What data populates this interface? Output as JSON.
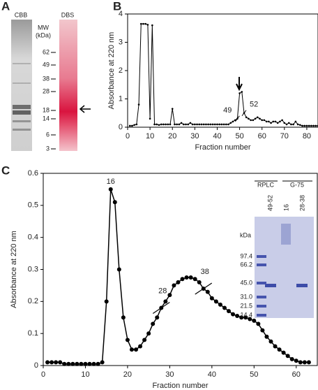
{
  "gels": {
    "panel_label": "A",
    "lanes": [
      "CBB",
      "DBS"
    ],
    "mw_title": "MW",
    "mw_unit": "(kDa)",
    "markers": [
      "62",
      "49",
      "38",
      "28",
      "18",
      "14",
      "6",
      "3"
    ],
    "inset": {
      "groups": [
        "RPLC",
        "G-75"
      ],
      "lanes": [
        "49-52",
        "16",
        "28-38"
      ],
      "unit": "kDa",
      "markers": [
        "97.4",
        "66.2",
        "45.0",
        "31.0",
        "21.5",
        "14.4"
      ]
    }
  },
  "chart_data": [
    {
      "type": "line",
      "panel_label": "B",
      "xlabel": "Fraction number",
      "ylabel": "Absorbance at 220 nm",
      "color": "#000000",
      "x": [
        1,
        2,
        3,
        4,
        5,
        6,
        7,
        8,
        9,
        10,
        11,
        12,
        13,
        14,
        15,
        16,
        17,
        18,
        19,
        20,
        21,
        22,
        23,
        24,
        25,
        26,
        27,
        28,
        29,
        30,
        31,
        32,
        33,
        34,
        35,
        36,
        37,
        38,
        39,
        40,
        41,
        42,
        43,
        44,
        45,
        46,
        47,
        48,
        49,
        50,
        51,
        52,
        53,
        54,
        55,
        56,
        57,
        58,
        59,
        60,
        61,
        62,
        63,
        64,
        65,
        66,
        67,
        68,
        69,
        70,
        71,
        72,
        73,
        74,
        75,
        76,
        77,
        78,
        79,
        80,
        81,
        82,
        83,
        84,
        85
      ],
      "values": [
        0.05,
        0.05,
        0.08,
        0.1,
        0.8,
        3.65,
        3.65,
        3.65,
        3.62,
        0.3,
        3.6,
        0.1,
        0.1,
        0.08,
        0.1,
        0.1,
        0.1,
        0.1,
        0.1,
        0.65,
        0.1,
        0.1,
        0.1,
        0.15,
        0.1,
        0.1,
        0.1,
        0.15,
        0.1,
        0.1,
        0.1,
        0.1,
        0.1,
        0.1,
        0.1,
        0.1,
        0.1,
        0.1,
        0.1,
        0.1,
        0.1,
        0.1,
        0.1,
        0.1,
        0.1,
        0.15,
        0.2,
        0.25,
        0.3,
        1.2,
        1.25,
        0.5,
        0.35,
        0.3,
        0.25,
        0.25,
        0.3,
        0.35,
        0.3,
        0.25,
        0.25,
        0.2,
        0.2,
        0.15,
        0.2,
        0.2,
        0.15,
        0.2,
        0.25,
        0.15,
        0.1,
        0.15,
        0.1,
        0.1,
        0.2,
        0.1,
        0.08,
        0.05,
        0.05,
        0.05,
        0.05,
        0.05,
        0.05,
        0.05,
        0.05
      ],
      "annotations": [
        "49",
        "52"
      ],
      "xlim": [
        0,
        85
      ],
      "xticks": [
        0,
        10,
        20,
        30,
        40,
        50,
        60,
        70,
        80
      ],
      "ylim": [
        0,
        4
      ],
      "yticks": [
        0,
        1,
        2,
        3,
        4
      ]
    },
    {
      "type": "line",
      "panel_label": "C",
      "xlabel": "Fraction number",
      "ylabel": "Absorbance at 220 nm",
      "color": "#000000",
      "x": [
        1,
        2,
        3,
        4,
        5,
        6,
        7,
        8,
        9,
        10,
        11,
        12,
        13,
        14,
        15,
        16,
        17,
        18,
        19,
        20,
        21,
        22,
        23,
        24,
        25,
        26,
        27,
        28,
        29,
        30,
        31,
        32,
        33,
        34,
        35,
        36,
        37,
        38,
        39,
        40,
        41,
        42,
        43,
        44,
        45,
        46,
        47,
        48,
        49,
        50,
        51,
        52,
        53,
        54,
        55,
        56,
        57,
        58,
        59,
        60,
        61,
        62,
        63
      ],
      "values": [
        0.01,
        0.01,
        0.01,
        0.01,
        0.005,
        0.005,
        0.005,
        0.005,
        0.005,
        0.005,
        0.005,
        0.005,
        0.005,
        0.01,
        0.2,
        0.55,
        0.51,
        0.3,
        0.15,
        0.08,
        0.05,
        0.05,
        0.06,
        0.08,
        0.1,
        0.13,
        0.15,
        0.18,
        0.2,
        0.22,
        0.25,
        0.26,
        0.27,
        0.275,
        0.275,
        0.27,
        0.26,
        0.24,
        0.23,
        0.21,
        0.2,
        0.19,
        0.18,
        0.17,
        0.16,
        0.155,
        0.15,
        0.15,
        0.145,
        0.14,
        0.13,
        0.11,
        0.09,
        0.075,
        0.06,
        0.05,
        0.04,
        0.03,
        0.02,
        0.015,
        0.01,
        0.01,
        0.01
      ],
      "annotations": [
        "16",
        "28",
        "38"
      ],
      "xlim": [
        0,
        65
      ],
      "xticks": [
        0,
        10,
        20,
        30,
        40,
        50,
        60
      ],
      "ylim": [
        0,
        0.6
      ],
      "yticks": [
        0,
        0.1,
        0.2,
        0.3,
        0.4,
        0.5,
        0.6
      ]
    }
  ]
}
